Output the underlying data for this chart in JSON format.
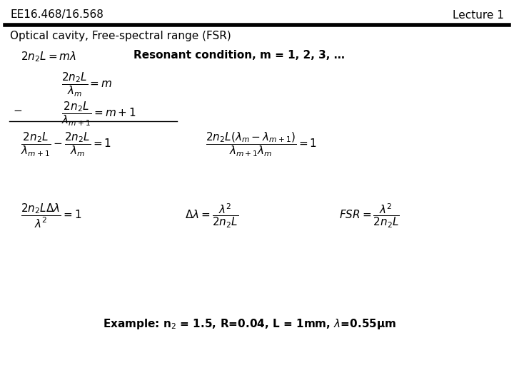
{
  "bg_color": "#ffffff",
  "header_text": "EE16.468/16.568",
  "lecture_text": "Lecture 1",
  "subtitle": "Optical cavity, Free-spectral range (FSR)",
  "header_fontsize": 11,
  "subtitle_fontsize": 11,
  "body_fontsize": 11,
  "math_fontsize": 11,
  "formulas": {
    "resonant_condition": "Resonant condition, m = 1, 2, 3, …",
    "eq1_lhs": "$2n_2 L = m\\lambda$",
    "eq2": "$\\dfrac{2n_2 L}{\\lambda_m} = m$",
    "eq3": "$\\dfrac{2n_2 L}{\\lambda_{m+1}} = m+1$",
    "eq4_lhs": "$\\dfrac{2n_2 L}{\\lambda_{m+1}} - \\dfrac{2n_2 L}{\\lambda_m} = 1$",
    "eq4_rhs": "$\\dfrac{2n_2 L(\\lambda_m - \\lambda_{m+1})}{\\lambda_{m+1}\\lambda_m} = 1$",
    "eq5_lhs": "$\\dfrac{2n_2 L\\Delta\\lambda}{\\lambda^2} = 1$",
    "eq5_mid": "$\\Delta\\lambda = \\dfrac{\\lambda^2}{2n_2 L}$",
    "eq5_rhs": "$FSR = \\dfrac{\\lambda^2}{2n_2 L}$",
    "example": "Example: n$_2$ = 1.5, R=0.04, L = 1mm, $\\lambda$=0.55μm"
  }
}
